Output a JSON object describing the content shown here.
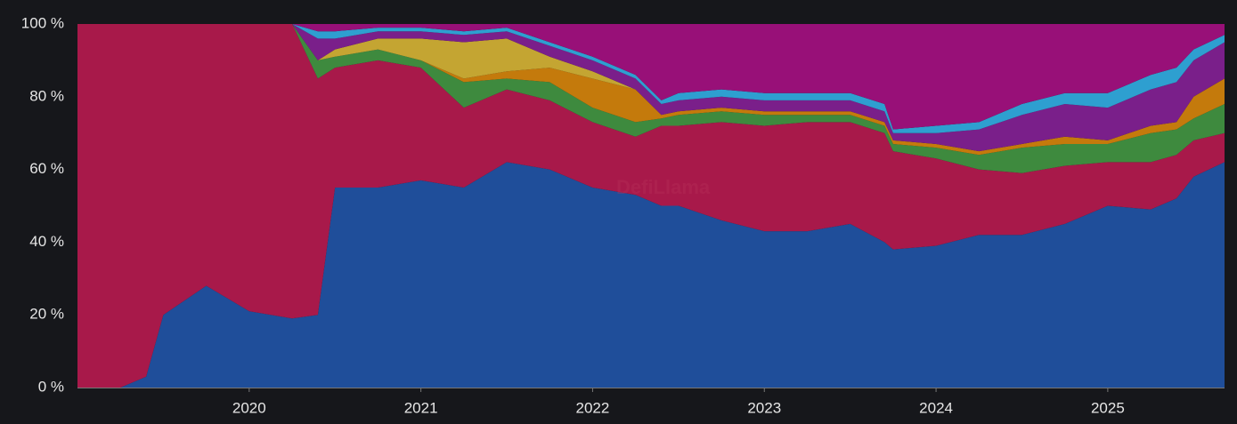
{
  "chart_data": {
    "type": "stacked_area_percent",
    "watermark": "DefiLlama",
    "x": [
      2019.0,
      2019.25,
      2019.4,
      2019.5,
      2019.75,
      2020.0,
      2020.25,
      2020.4,
      2020.5,
      2020.75,
      2021.0,
      2021.25,
      2021.5,
      2021.75,
      2022.0,
      2022.25,
      2022.4,
      2022.5,
      2022.75,
      2023.0,
      2023.25,
      2023.5,
      2023.7,
      2023.75,
      2024.0,
      2024.25,
      2024.5,
      2024.75,
      2025.0,
      2025.25,
      2025.4,
      2025.5,
      2025.68
    ],
    "series": [
      {
        "color": "#1f4e9a",
        "values": [
          0,
          0,
          3,
          20,
          28,
          21,
          19,
          20,
          55,
          55,
          57,
          55,
          62,
          60,
          55,
          53,
          50,
          50,
          46,
          43,
          43,
          45,
          40,
          38,
          39,
          42,
          42,
          45,
          50,
          49,
          52,
          58,
          62
        ]
      },
      {
        "color": "#a8194a",
        "values": [
          100,
          100,
          97,
          80,
          72,
          79,
          81,
          65,
          33,
          35,
          31,
          22,
          20,
          19,
          18,
          16,
          22,
          22,
          27,
          29,
          30,
          28,
          30,
          27,
          24,
          18,
          17,
          16,
          12,
          13,
          12,
          10,
          8
        ]
      },
      {
        "color": "#3e8a3e",
        "values": [
          0,
          0,
          0,
          0,
          0,
          0,
          0,
          5,
          3,
          3,
          2,
          7,
          3,
          5,
          4,
          4,
          2,
          3,
          3,
          3,
          2,
          2,
          2,
          2,
          3,
          4,
          7,
          6,
          5,
          8,
          7,
          6,
          8
        ]
      },
      {
        "color": "#c47a0c",
        "values": [
          0,
          0,
          0,
          0,
          0,
          0,
          0,
          0,
          0,
          0,
          0,
          1,
          2,
          4,
          8,
          9,
          1,
          1,
          1,
          1,
          1,
          1,
          1,
          1,
          1,
          1,
          1,
          2,
          1,
          2,
          2,
          6,
          7
        ]
      },
      {
        "color": "#c4a532",
        "values": [
          0,
          0,
          0,
          0,
          0,
          0,
          0,
          0,
          2,
          3,
          6,
          10,
          9,
          3,
          2,
          0,
          0,
          0,
          0,
          0,
          0,
          0,
          0,
          0,
          0,
          0,
          0,
          0,
          0,
          0,
          0,
          0,
          0
        ]
      },
      {
        "color": "#7a1f8a",
        "values": [
          0,
          0,
          0,
          0,
          0,
          0,
          0,
          6,
          3,
          2,
          2,
          2,
          2,
          3,
          3,
          3,
          3,
          3,
          3,
          3,
          3,
          3,
          3,
          2,
          3,
          6,
          8,
          9,
          9,
          10,
          11,
          10,
          10
        ]
      },
      {
        "color": "#2e9fd0",
        "values": [
          0,
          0,
          0,
          0,
          0,
          0,
          0,
          2,
          2,
          1,
          1,
          1,
          1,
          1,
          1,
          1,
          1,
          2,
          2,
          2,
          2,
          2,
          2,
          1,
          2,
          2,
          3,
          3,
          4,
          4,
          4,
          3,
          2
        ]
      },
      {
        "color": "#981078",
        "values": [
          0,
          0,
          0,
          0,
          0,
          0,
          0,
          2,
          2,
          1,
          1,
          2,
          1,
          5,
          9,
          14,
          21,
          19,
          18,
          19,
          19,
          19,
          22,
          29,
          28,
          27,
          22,
          19,
          19,
          14,
          12,
          7,
          3
        ]
      }
    ],
    "xlim": [
      2019.0,
      2025.68
    ],
    "xticks": [
      2020,
      2021,
      2022,
      2023,
      2024,
      2025
    ],
    "ylim": [
      0,
      100
    ],
    "yticks": [
      {
        "value": 0,
        "label": "0 %"
      },
      {
        "value": 20,
        "label": "20 %"
      },
      {
        "value": 40,
        "label": "40 %"
      },
      {
        "value": 60,
        "label": "60 %"
      },
      {
        "value": 80,
        "label": "80 %"
      },
      {
        "value": 100,
        "label": "100 %"
      }
    ]
  }
}
